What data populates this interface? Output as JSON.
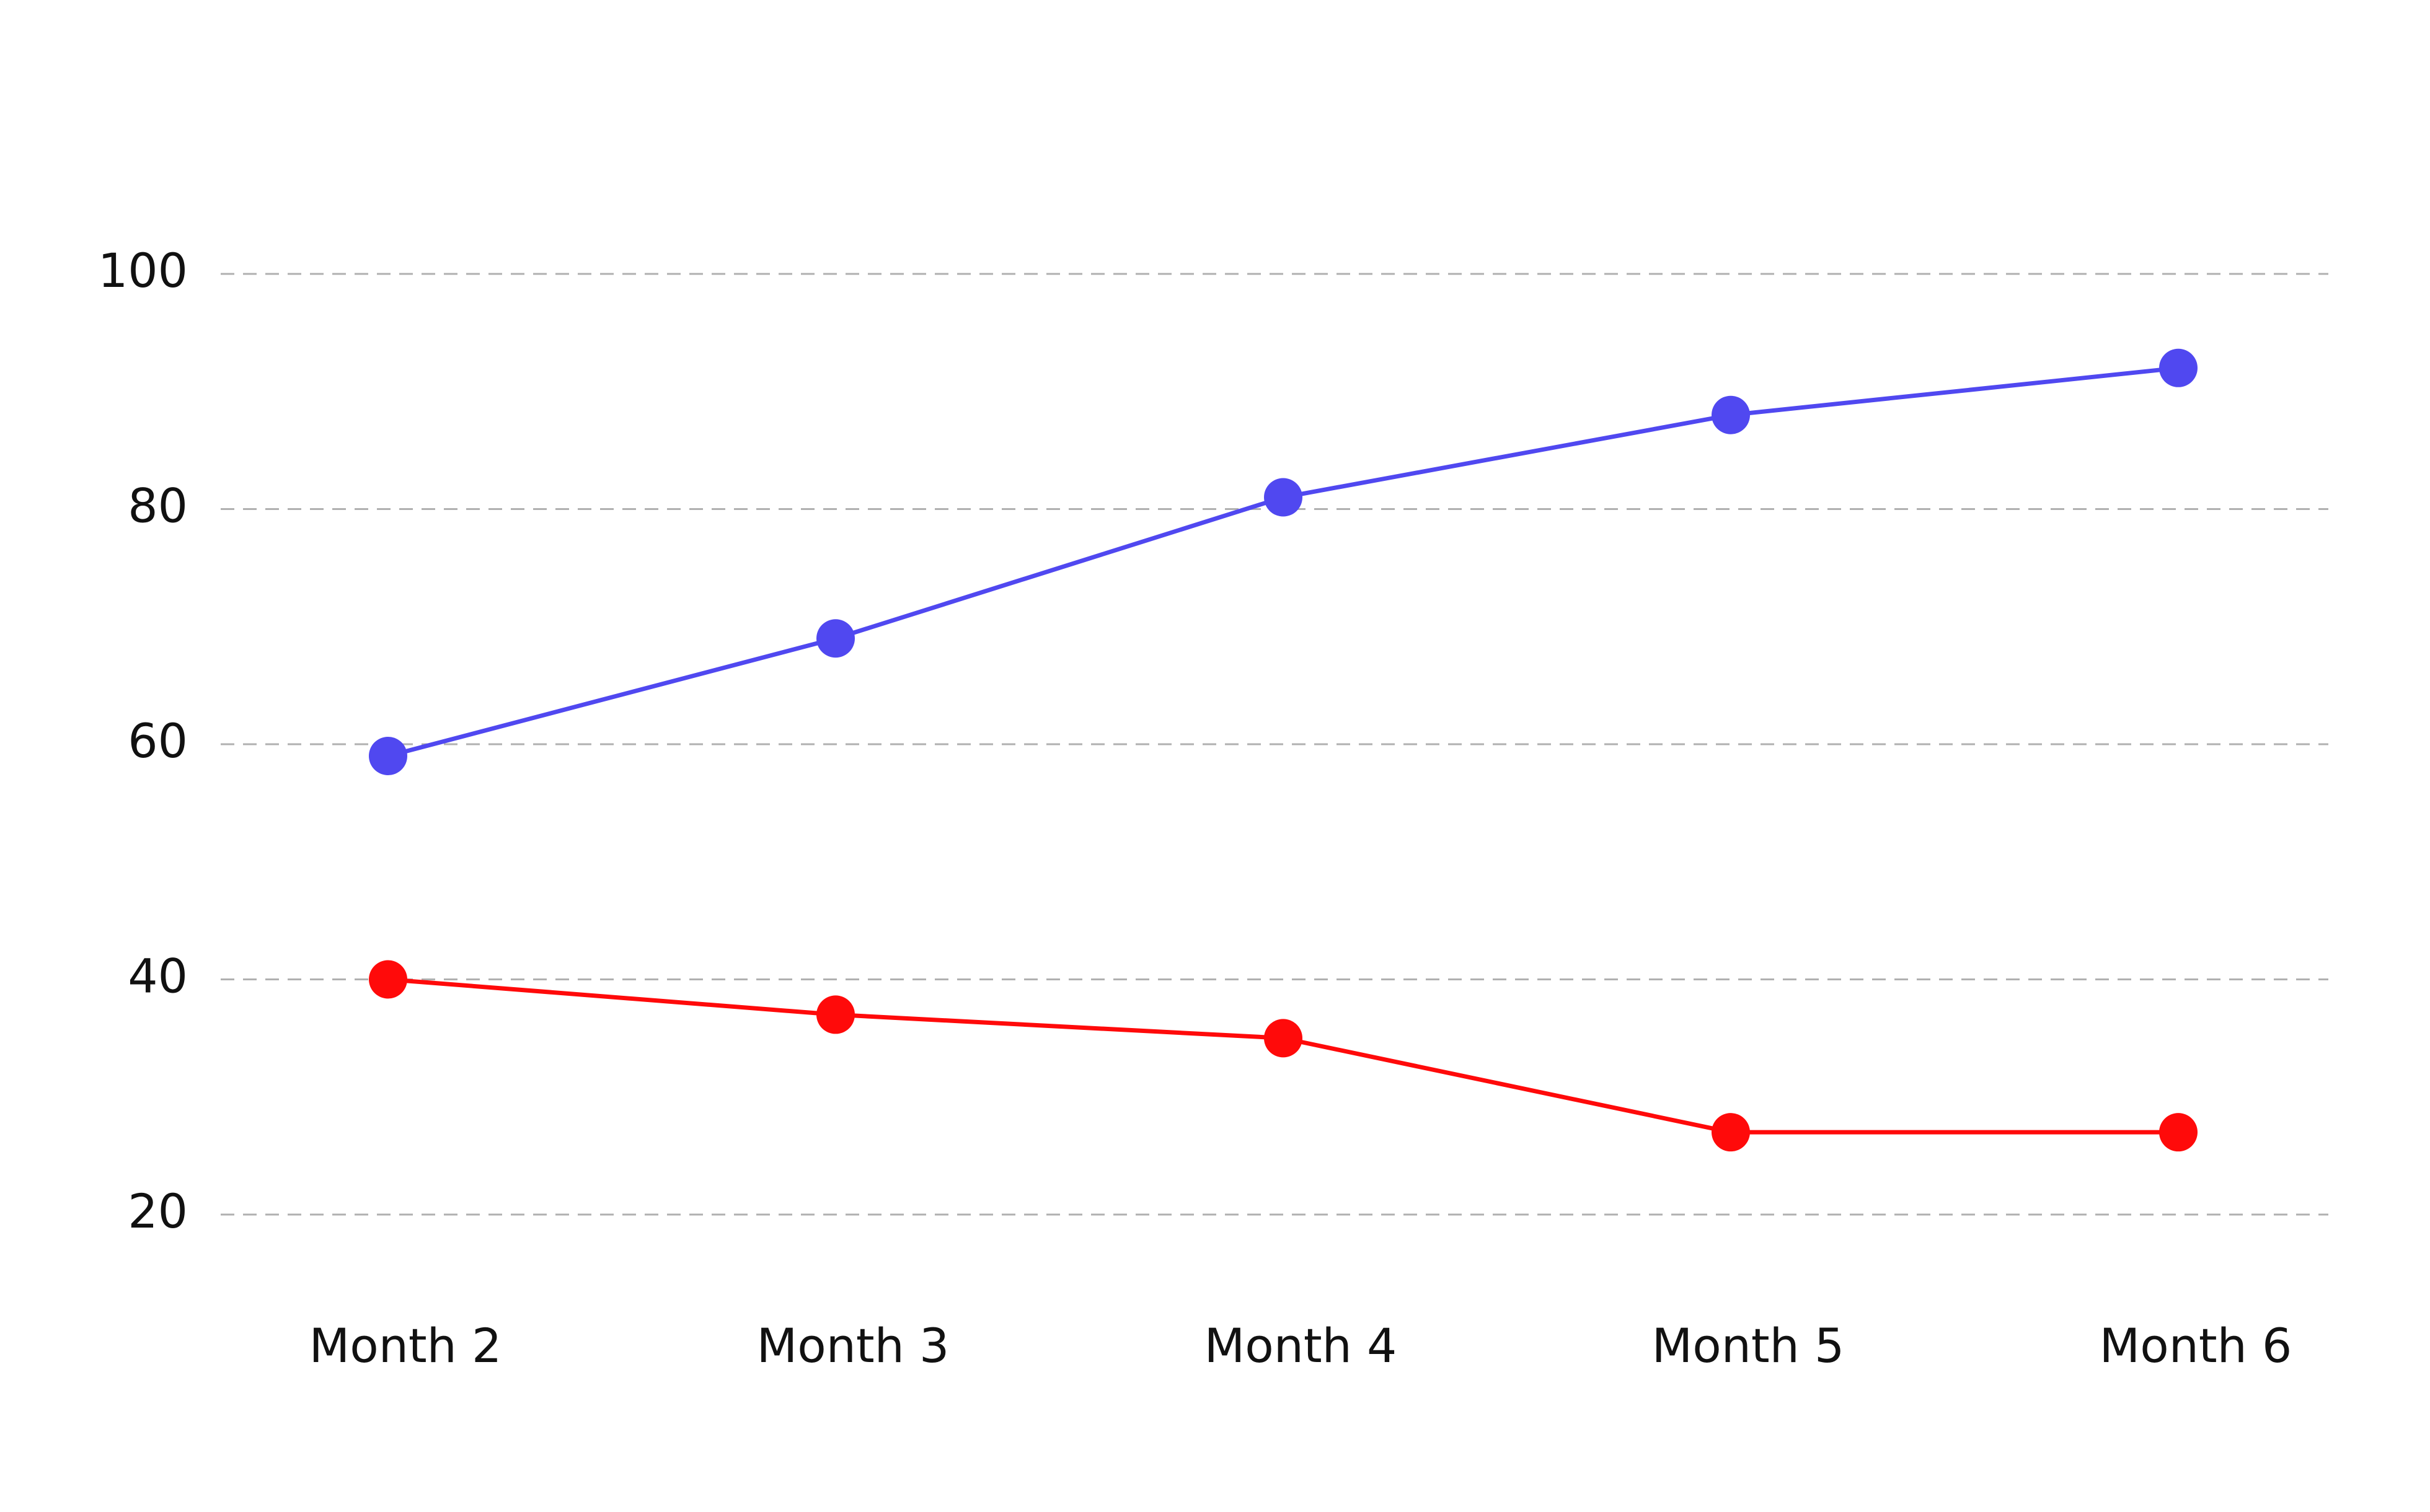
{
  "chart_data": {
    "type": "line",
    "categories": [
      "Month 2",
      "Month 3",
      "Month 4",
      "Month 5",
      "Month 6"
    ],
    "series": [
      {
        "color": "#5048f0",
        "values": [
          59,
          69,
          81,
          88,
          92
        ]
      },
      {
        "color": "#ff0a0a",
        "values": [
          40,
          37,
          35,
          27,
          27
        ]
      }
    ],
    "ylim": [
      20,
      100
    ],
    "yticks": [
      20,
      40,
      60,
      80,
      100
    ],
    "grid": true
  }
}
